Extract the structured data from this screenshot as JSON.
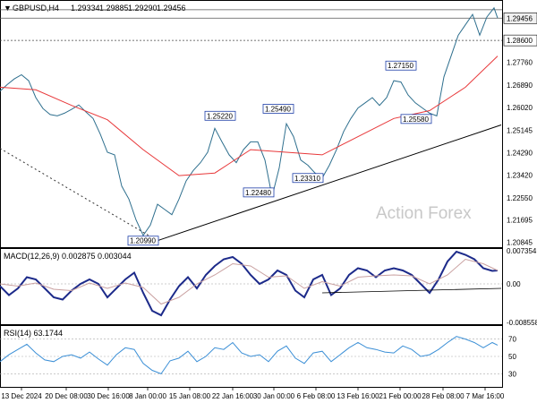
{
  "chart_data": [
    {
      "type": "candlestick",
      "panel": "price",
      "title": "GBPUSD,H4",
      "ohlc": {
        "open": "1.29334",
        "high": "1.29885",
        "low": "1.29290",
        "close": "1.29456"
      },
      "y_ticks": [
        "1.29456",
        "1.28600",
        "1.27760",
        "1.26890",
        "1.26020",
        "1.25145",
        "1.24290",
        "1.23420",
        "1.22550",
        "1.21695",
        "1.20845"
      ],
      "y_range": [
        1.2065,
        1.3012
      ],
      "current_price": "1.29456",
      "horizontal_level": "1.28600",
      "annotations": [
        "1.20990",
        "1.22480",
        "1.25220",
        "1.25490",
        "1.23310",
        "1.27150",
        "1.25580"
      ],
      "watermark": "Action Forex",
      "series": [
        {
          "kind": "price",
          "color": "#2e6f8e",
          "x": [
            0,
            8,
            16,
            24,
            32,
            40,
            48,
            56,
            64,
            72,
            80,
            88,
            96,
            104,
            112,
            120,
            128,
            136,
            144,
            152,
            160,
            168,
            176,
            184,
            192,
            200,
            208,
            216,
            224,
            232,
            240,
            248,
            256,
            264,
            272,
            280,
            288,
            296,
            304,
            312,
            320,
            328,
            336,
            344,
            352,
            360,
            368,
            376,
            384,
            392,
            400,
            408,
            416,
            424,
            432,
            440,
            448,
            456,
            464,
            472,
            480,
            488,
            496,
            504,
            512,
            520,
            528,
            536,
            544,
            552,
            556
          ],
          "y": [
            1.2665,
            1.269,
            1.2712,
            1.2728,
            1.2705,
            1.264,
            1.2598,
            1.2575,
            1.257,
            1.258,
            1.2595,
            1.2612,
            1.2585,
            1.256,
            1.25,
            1.243,
            1.242,
            1.23,
            1.225,
            1.217,
            1.211,
            1.215,
            1.223,
            1.221,
            1.219,
            1.225,
            1.232,
            1.236,
            1.239,
            1.243,
            1.2522,
            1.247,
            1.242,
            1.239,
            1.244,
            1.247,
            1.247,
            1.24,
            1.226,
            1.237,
            1.254,
            1.249,
            1.24,
            1.238,
            1.235,
            1.2331,
            1.238,
            1.244,
            1.251,
            1.256,
            1.26,
            1.262,
            1.264,
            1.261,
            1.264,
            1.2705,
            1.27,
            1.265,
            1.262,
            1.26,
            1.258,
            1.257,
            1.272,
            1.28,
            1.288,
            1.292,
            1.296,
            1.288,
            1.295,
            1.2985,
            1.2946
          ]
        },
        {
          "kind": "moving-average",
          "color": "#e8383a",
          "x": [
            0,
            40,
            80,
            120,
            160,
            200,
            240,
            280,
            320,
            360,
            400,
            440,
            480,
            520,
            556
          ],
          "y": [
            1.268,
            1.267,
            1.261,
            1.2555,
            1.244,
            1.234,
            1.235,
            1.244,
            1.243,
            1.242,
            1.249,
            1.256,
            1.259,
            1.268,
            1.28
          ]
        },
        {
          "kind": "trendline-support",
          "color": "#000000",
          "x": [
            176,
            560
          ],
          "y": [
            1.209,
            1.2535
          ]
        },
        {
          "kind": "trendline-resistance-dotted",
          "color": "#333333",
          "x": [
            0,
            176
          ],
          "y": [
            1.2445,
            1.209
          ]
        }
      ]
    },
    {
      "type": "line",
      "panel": "macd",
      "title": "MACD(12,26,9) 0.002875 0.003044",
      "y_ticks": [
        "0.007354",
        "0.00",
        "-0.008558"
      ],
      "y_range": [
        -0.009,
        0.0078
      ],
      "series": [
        {
          "name": "MACD",
          "color": "#1c2a8a",
          "x": [
            0,
            10,
            20,
            30,
            40,
            50,
            60,
            70,
            80,
            90,
            100,
            110,
            120,
            130,
            140,
            150,
            160,
            170,
            180,
            190,
            200,
            210,
            220,
            230,
            240,
            250,
            260,
            270,
            280,
            290,
            300,
            310,
            320,
            330,
            340,
            350,
            360,
            370,
            380,
            390,
            400,
            410,
            420,
            430,
            440,
            450,
            460,
            470,
            480,
            490,
            500,
            510,
            520,
            530,
            540,
            550,
            556
          ],
          "y": [
            -0.0005,
            -0.0025,
            -0.001,
            0.0015,
            0.001,
            -0.001,
            -0.003,
            -0.0035,
            -0.0015,
            0.0,
            0.001,
            0.0,
            -0.003,
            -0.001,
            0.001,
            0.0025,
            -0.002,
            -0.006,
            -0.007,
            -0.0035,
            -0.0005,
            0.0015,
            -0.001,
            0.002,
            0.004,
            0.0055,
            0.006,
            0.0045,
            0.002,
            0.0,
            0.001,
            0.003,
            0.002,
            -0.0015,
            -0.003,
            0.001,
            0.002,
            -0.0025,
            -0.001,
            0.002,
            0.0035,
            0.003,
            0.0015,
            0.003,
            0.0035,
            0.003,
            0.002,
            0.0,
            -0.002,
            0.001,
            0.005,
            0.0072,
            0.0065,
            0.0055,
            0.0035,
            0.0029,
            0.003
          ]
        },
        {
          "name": "Signal",
          "color": "#c9a0a0",
          "x": [
            0,
            20,
            40,
            60,
            80,
            100,
            120,
            140,
            160,
            180,
            200,
            220,
            240,
            260,
            280,
            300,
            320,
            340,
            360,
            380,
            400,
            420,
            440,
            460,
            480,
            500,
            520,
            540,
            556
          ],
          "y": [
            0.0,
            -0.0005,
            0.0002,
            -0.0012,
            -0.0015,
            0.0002,
            -0.001,
            0.0002,
            -0.0008,
            -0.0045,
            -0.003,
            0.0,
            0.002,
            0.0045,
            0.004,
            0.0015,
            0.0018,
            -0.001,
            0.0005,
            -0.0005,
            0.0015,
            0.0018,
            0.002,
            0.0018,
            0.0,
            0.002,
            0.0055,
            0.0045,
            0.003
          ]
        },
        {
          "kind": "trendline",
          "color": "#000000",
          "x": [
            360,
            560
          ],
          "y": [
            -0.002,
            -0.001
          ]
        }
      ]
    },
    {
      "type": "line",
      "panel": "rsi",
      "title": "RSI(14) 63.1744",
      "y_ticks": [
        "70",
        "50",
        "30"
      ],
      "y_range": [
        15,
        85
      ],
      "series": [
        {
          "name": "RSI",
          "color": "#3b8fd6",
          "x": [
            0,
            10,
            20,
            30,
            40,
            50,
            60,
            70,
            80,
            90,
            100,
            110,
            120,
            130,
            140,
            150,
            160,
            170,
            180,
            190,
            200,
            210,
            220,
            230,
            240,
            250,
            260,
            270,
            280,
            290,
            300,
            310,
            320,
            330,
            340,
            350,
            360,
            370,
            380,
            390,
            400,
            410,
            420,
            430,
            440,
            450,
            460,
            470,
            480,
            490,
            500,
            510,
            520,
            530,
            540,
            550,
            556
          ],
          "y": [
            44,
            52,
            58,
            64,
            54,
            46,
            44,
            50,
            52,
            48,
            55,
            47,
            40,
            52,
            60,
            58,
            42,
            34,
            30,
            45,
            48,
            56,
            44,
            50,
            60,
            58,
            66,
            54,
            50,
            52,
            44,
            56,
            62,
            48,
            42,
            54,
            56,
            44,
            52,
            60,
            66,
            60,
            58,
            55,
            54,
            62,
            58,
            50,
            52,
            58,
            66,
            73,
            70,
            66,
            60,
            66,
            63
          ]
        }
      ]
    }
  ],
  "x_axis_labels": [
    "13 Dec 2024",
    "20 Dec 08:00",
    "30 Dec 16:00",
    "8 Jan 00:00",
    "15 Jan 08:00",
    "22 Jan 16:00",
    "30 Jan 00:00",
    "6 Feb 08:00",
    "13 Feb 16:00",
    "21 Feb 00:00",
    "28 Feb 08:00",
    "7 Mar 16:00"
  ],
  "x_axis_label_positions": [
    24,
    74,
    121,
    165,
    212,
    260,
    306,
    353,
    400,
    447,
    495,
    542
  ]
}
